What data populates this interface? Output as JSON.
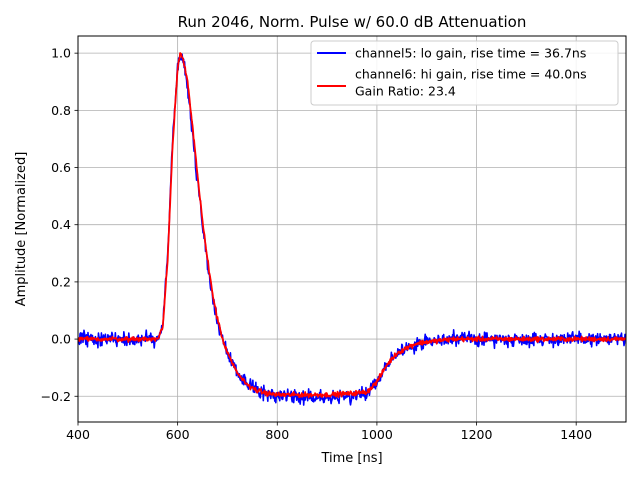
{
  "chart_data": {
    "type": "line",
    "title": "Run 2046, Norm. Pulse w/ 60.0 dB Attenuation",
    "xlabel": "Time [ns]",
    "ylabel": "Amplitude [Normalized]",
    "xlim": [
      400,
      1500
    ],
    "ylim": [
      -0.29,
      1.06
    ],
    "xticks": [
      400,
      600,
      800,
      1000,
      1200,
      1400
    ],
    "yticks": [
      -0.2,
      0.0,
      0.2,
      0.4,
      0.6,
      0.8,
      1.0
    ],
    "xtick_labels": [
      "400",
      "600",
      "800",
      "1000",
      "1200",
      "1400"
    ],
    "ytick_labels": [
      "−0.2",
      "0.0",
      "0.2",
      "0.4",
      "0.6",
      "0.8",
      "1.0"
    ],
    "grid": true,
    "legend_position": "top-right",
    "annotation": "Gain Ratio: 23.4",
    "series": [
      {
        "name": "channel5: lo gain, rise time = 36.7ns",
        "color": "#0000ff",
        "noise": 0.012,
        "x": [
          400,
          540,
          560,
          570,
          580,
          590,
          600,
          605,
          610,
          620,
          630,
          640,
          650,
          660,
          670,
          680,
          690,
          700,
          720,
          740,
          760,
          780,
          800,
          850,
          900,
          950,
          980,
          1000,
          1020,
          1040,
          1060,
          1080,
          1100,
          1150,
          1200,
          1300,
          1400,
          1500
        ],
        "values": [
          0.0,
          0.0,
          0.0,
          0.05,
          0.3,
          0.7,
          0.95,
          0.99,
          0.98,
          0.88,
          0.72,
          0.55,
          0.4,
          0.27,
          0.15,
          0.06,
          0.0,
          -0.05,
          -0.12,
          -0.16,
          -0.18,
          -0.19,
          -0.2,
          -0.2,
          -0.2,
          -0.2,
          -0.19,
          -0.15,
          -0.09,
          -0.05,
          -0.03,
          -0.02,
          -0.01,
          0.0,
          0.0,
          0.0,
          0.0,
          0.0
        ]
      },
      {
        "name": "channel6: hi gain, rise time = 40.0ns",
        "color": "#ff0000",
        "noise": 0.004,
        "x": [
          400,
          540,
          560,
          570,
          580,
          590,
          600,
          605,
          610,
          620,
          630,
          640,
          650,
          660,
          670,
          680,
          690,
          700,
          720,
          740,
          760,
          780,
          800,
          850,
          900,
          950,
          980,
          1000,
          1020,
          1040,
          1060,
          1080,
          1100,
          1150,
          1200,
          1300,
          1400,
          1500
        ],
        "values": [
          0.0,
          0.0,
          0.0,
          0.04,
          0.28,
          0.68,
          0.95,
          1.0,
          0.99,
          0.9,
          0.74,
          0.57,
          0.41,
          0.28,
          0.16,
          0.07,
          0.0,
          -0.05,
          -0.12,
          -0.16,
          -0.18,
          -0.19,
          -0.195,
          -0.195,
          -0.195,
          -0.19,
          -0.185,
          -0.15,
          -0.09,
          -0.05,
          -0.03,
          -0.015,
          -0.01,
          0.0,
          0.0,
          0.0,
          0.0,
          0.0
        ]
      }
    ]
  }
}
